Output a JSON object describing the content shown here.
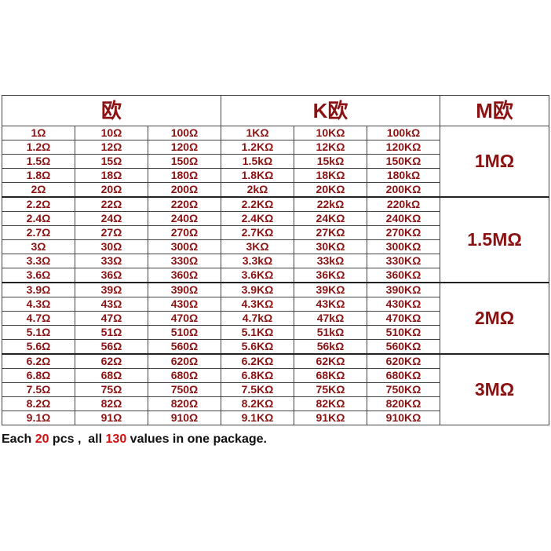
{
  "table": {
    "header": [
      "欧",
      "K欧",
      "M欧"
    ],
    "rows": [
      [
        "1Ω",
        "10Ω",
        "100Ω",
        "1KΩ",
        "10KΩ",
        "100kΩ"
      ],
      [
        "1.2Ω",
        "12Ω",
        "120Ω",
        "1.2KΩ",
        "12KΩ",
        "120KΩ"
      ],
      [
        "1.5Ω",
        "15Ω",
        "150Ω",
        "1.5kΩ",
        "15kΩ",
        "150KΩ"
      ],
      [
        "1.8Ω",
        "18Ω",
        "180Ω",
        "1.8KΩ",
        "18KΩ",
        "180kΩ"
      ],
      [
        "2Ω",
        "20Ω",
        "200Ω",
        "2kΩ",
        "20KΩ",
        "200KΩ"
      ],
      [
        "2.2Ω",
        "22Ω",
        "220Ω",
        "2.2KΩ",
        "22kΩ",
        "220kΩ"
      ],
      [
        "2.4Ω",
        "24Ω",
        "240Ω",
        "2.4KΩ",
        "24KΩ",
        "240KΩ"
      ],
      [
        "2.7Ω",
        "27Ω",
        "270Ω",
        "2.7KΩ",
        "27KΩ",
        "270KΩ"
      ],
      [
        "3Ω",
        "30Ω",
        "300Ω",
        "3KΩ",
        "30KΩ",
        "300KΩ"
      ],
      [
        "3.3Ω",
        "33Ω",
        "330Ω",
        "3.3kΩ",
        "33kΩ",
        "330KΩ"
      ],
      [
        "3.6Ω",
        "36Ω",
        "360Ω",
        "3.6KΩ",
        "36KΩ",
        "360KΩ"
      ],
      [
        "3.9Ω",
        "39Ω",
        "390Ω",
        "3.9KΩ",
        "39KΩ",
        "390KΩ"
      ],
      [
        "4.3Ω",
        "43Ω",
        "430Ω",
        "4.3KΩ",
        "43KΩ",
        "430KΩ"
      ],
      [
        "4.7Ω",
        "47Ω",
        "470Ω",
        "4.7kΩ",
        "47kΩ",
        "470KΩ"
      ],
      [
        "5.1Ω",
        "51Ω",
        "510Ω",
        "5.1KΩ",
        "51kΩ",
        "510KΩ"
      ],
      [
        "5.6Ω",
        "56Ω",
        "560Ω",
        "5.6KΩ",
        "56kΩ",
        "560KΩ"
      ],
      [
        "6.2Ω",
        "62Ω",
        "620Ω",
        "6.2KΩ",
        "62KΩ",
        "620KΩ"
      ],
      [
        "6.8Ω",
        "68Ω",
        "680Ω",
        "6.8KΩ",
        "68KΩ",
        "680KΩ"
      ],
      [
        "7.5Ω",
        "75Ω",
        "750Ω",
        "7.5KΩ",
        "75KΩ",
        "750KΩ"
      ],
      [
        "8.2Ω",
        "82Ω",
        "820Ω",
        "8.2KΩ",
        "82KΩ",
        "820KΩ"
      ],
      [
        "9.1Ω",
        "91Ω",
        "910Ω",
        "9.1KΩ",
        "91KΩ",
        "910KΩ"
      ]
    ],
    "mega": [
      "1MΩ",
      "1.5MΩ",
      "2MΩ",
      "3MΩ"
    ]
  },
  "footer": {
    "parts": [
      "Each ",
      "20",
      " pcs ,  all ",
      "130",
      " values in one package."
    ]
  }
}
